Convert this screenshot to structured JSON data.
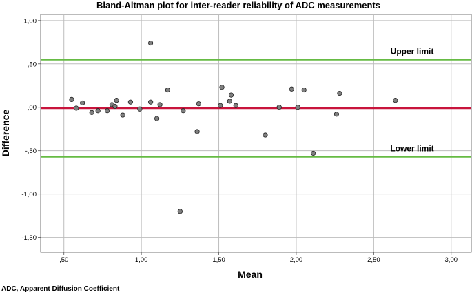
{
  "chart_data": {
    "type": "scatter",
    "title": "Bland-Altman plot for inter-reader reliability of ADC measurements",
    "xlabel": "Mean",
    "ylabel": "Difference",
    "xlim": [
      0.35,
      3.13
    ],
    "ylim": [
      -1.67,
      1.07
    ],
    "x_ticks": [
      0.5,
      1.0,
      1.5,
      2.0,
      2.5,
      3.0
    ],
    "x_tick_labels": [
      ",50",
      "1,00",
      "1,50",
      "2,00",
      "2,50",
      "3,00"
    ],
    "y_ticks": [
      1.0,
      0.5,
      0.0,
      -0.5,
      -1.0,
      -1.5
    ],
    "y_tick_labels": [
      "1,00",
      ",50",
      ",00",
      "-,50",
      "-1,00",
      "-1,50"
    ],
    "grid": true,
    "reference_lines": [
      {
        "label": "Upper limit",
        "y": 0.55,
        "color": "#66bb44"
      },
      {
        "label": "",
        "y": -0.01,
        "color": "#c8143c"
      },
      {
        "label": "Lower limit",
        "y": -0.57,
        "color": "#66bb44"
      }
    ],
    "points": [
      {
        "x": 0.55,
        "y": 0.09
      },
      {
        "x": 0.58,
        "y": -0.01
      },
      {
        "x": 0.62,
        "y": 0.05
      },
      {
        "x": 0.68,
        "y": -0.06
      },
      {
        "x": 0.72,
        "y": -0.04
      },
      {
        "x": 0.78,
        "y": -0.04
      },
      {
        "x": 0.81,
        "y": 0.03
      },
      {
        "x": 0.83,
        "y": 0.01
      },
      {
        "x": 0.84,
        "y": 0.08
      },
      {
        "x": 0.88,
        "y": -0.09
      },
      {
        "x": 0.93,
        "y": 0.06
      },
      {
        "x": 0.99,
        "y": -0.02
      },
      {
        "x": 1.06,
        "y": 0.74
      },
      {
        "x": 1.06,
        "y": 0.06
      },
      {
        "x": 1.1,
        "y": -0.13
      },
      {
        "x": 1.12,
        "y": 0.03
      },
      {
        "x": 1.17,
        "y": 0.2
      },
      {
        "x": 1.25,
        "y": -1.2
      },
      {
        "x": 1.27,
        "y": -0.04
      },
      {
        "x": 1.36,
        "y": -0.28
      },
      {
        "x": 1.37,
        "y": 0.04
      },
      {
        "x": 1.51,
        "y": 0.02
      },
      {
        "x": 1.52,
        "y": 0.23
      },
      {
        "x": 1.57,
        "y": 0.07
      },
      {
        "x": 1.58,
        "y": 0.14
      },
      {
        "x": 1.61,
        "y": 0.02
      },
      {
        "x": 1.8,
        "y": -0.32
      },
      {
        "x": 1.89,
        "y": 0.0
      },
      {
        "x": 1.97,
        "y": 0.21
      },
      {
        "x": 2.01,
        "y": 0.0
      },
      {
        "x": 2.05,
        "y": 0.2
      },
      {
        "x": 2.11,
        "y": -0.53
      },
      {
        "x": 2.26,
        "y": -0.08
      },
      {
        "x": 2.28,
        "y": 0.16
      },
      {
        "x": 2.64,
        "y": 0.08
      }
    ],
    "point_color": "#7f7f7f"
  },
  "footnote": "ADC, Apparent Diffusion Coefficient"
}
